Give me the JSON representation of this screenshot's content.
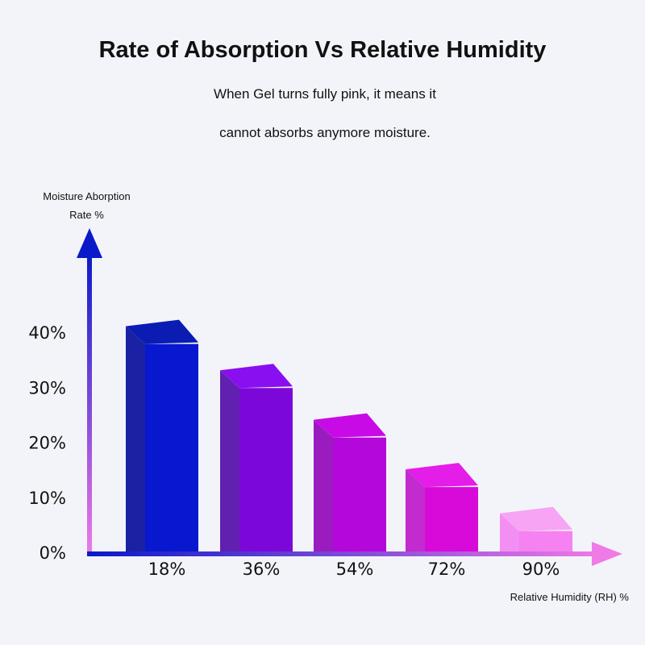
{
  "chart_data": {
    "type": "bar",
    "title": "Rate of Absorption Vs Relative Humidity",
    "subtitle_lines": [
      "When Gel turns fully pink, it means it",
      "cannot absorbs anymore moisture."
    ],
    "ylabel_lines": [
      "Moisture Aborption",
      "Rate %"
    ],
    "xlabel": "Relative Humidity (RH) %",
    "categories": [
      "18%",
      "36%",
      "54%",
      "72%",
      "90%"
    ],
    "values": [
      38,
      30,
      21,
      12,
      4
    ],
    "ylim": [
      0,
      40
    ],
    "yticks": [
      {
        "value": 0,
        "label": "0%"
      },
      {
        "value": 10,
        "label": "10%"
      },
      {
        "value": 20,
        "label": "20%"
      },
      {
        "value": 30,
        "label": "30%"
      },
      {
        "value": 40,
        "label": "40%"
      }
    ],
    "grid": false,
    "legend": "none",
    "bar_colors": [
      {
        "front": "#0718cf",
        "side": "#1a22a3",
        "top": "#0a1cb2"
      },
      {
        "front": "#7b08d9",
        "side": "#6220b0",
        "top": "#8a0ff0"
      },
      {
        "front": "#b407d9",
        "side": "#9a1cbf",
        "top": "#c80be6"
      },
      {
        "front": "#d70ad9",
        "side": "#c22bcd",
        "top": "#e51de8"
      },
      {
        "front": "#f582f0",
        "side": "#f38ef3",
        "top": "#f7a4f5"
      }
    ],
    "axis_colors": {
      "start": "#0a1ac9",
      "end": "#f07ae6"
    }
  }
}
